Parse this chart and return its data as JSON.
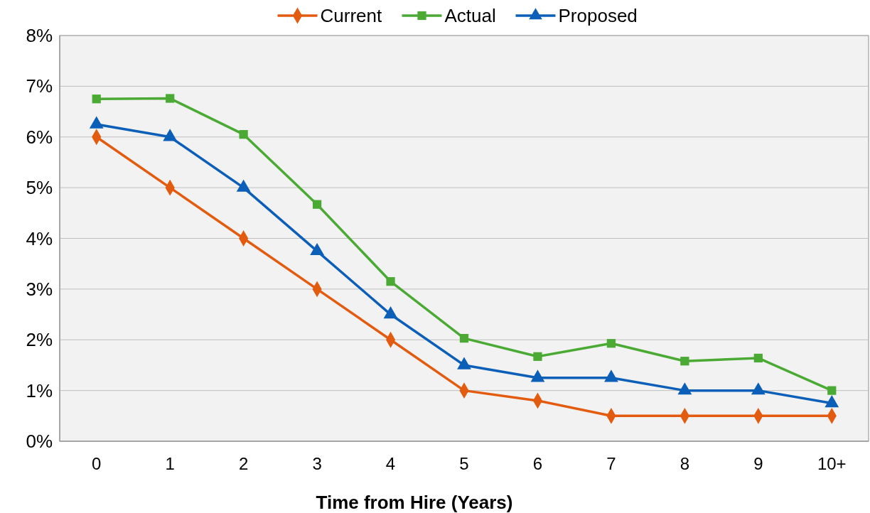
{
  "chart_data": {
    "type": "line",
    "xlabel": "Time from Hire (Years)",
    "categories": [
      "0",
      "1",
      "2",
      "3",
      "4",
      "5",
      "6",
      "7",
      "8",
      "9",
      "10+"
    ],
    "series": [
      {
        "name": "Current",
        "color": "#e35b0e",
        "marker": "diamond",
        "values": [
          6,
          5,
          4,
          3,
          2,
          1,
          0.8,
          0.5,
          0.5,
          0.5,
          0.5
        ]
      },
      {
        "name": "Actual",
        "color": "#4aaa33",
        "marker": "square",
        "values": [
          6.75,
          6.76,
          6.05,
          4.67,
          3.15,
          2.03,
          1.67,
          1.93,
          1.58,
          1.64,
          1.0
        ]
      },
      {
        "name": "Proposed",
        "color": "#0b5fb8",
        "marker": "triangle",
        "values": [
          6.25,
          6.0,
          5.0,
          3.75,
          2.5,
          1.5,
          1.25,
          1.25,
          1.0,
          1.0,
          0.75
        ]
      }
    ],
    "ylim": [
      0,
      8
    ],
    "yticks": [
      {
        "value": 0,
        "label": "0%"
      },
      {
        "value": 1,
        "label": "1%"
      },
      {
        "value": 2,
        "label": "2%"
      },
      {
        "value": 3,
        "label": "3%"
      },
      {
        "value": 4,
        "label": "4%"
      },
      {
        "value": 5,
        "label": "5%"
      },
      {
        "value": 6,
        "label": "6%"
      },
      {
        "value": 7,
        "label": "7%"
      },
      {
        "value": 8,
        "label": "8%"
      }
    ],
    "grid": "y",
    "legend": "top",
    "line_style": "solid"
  }
}
